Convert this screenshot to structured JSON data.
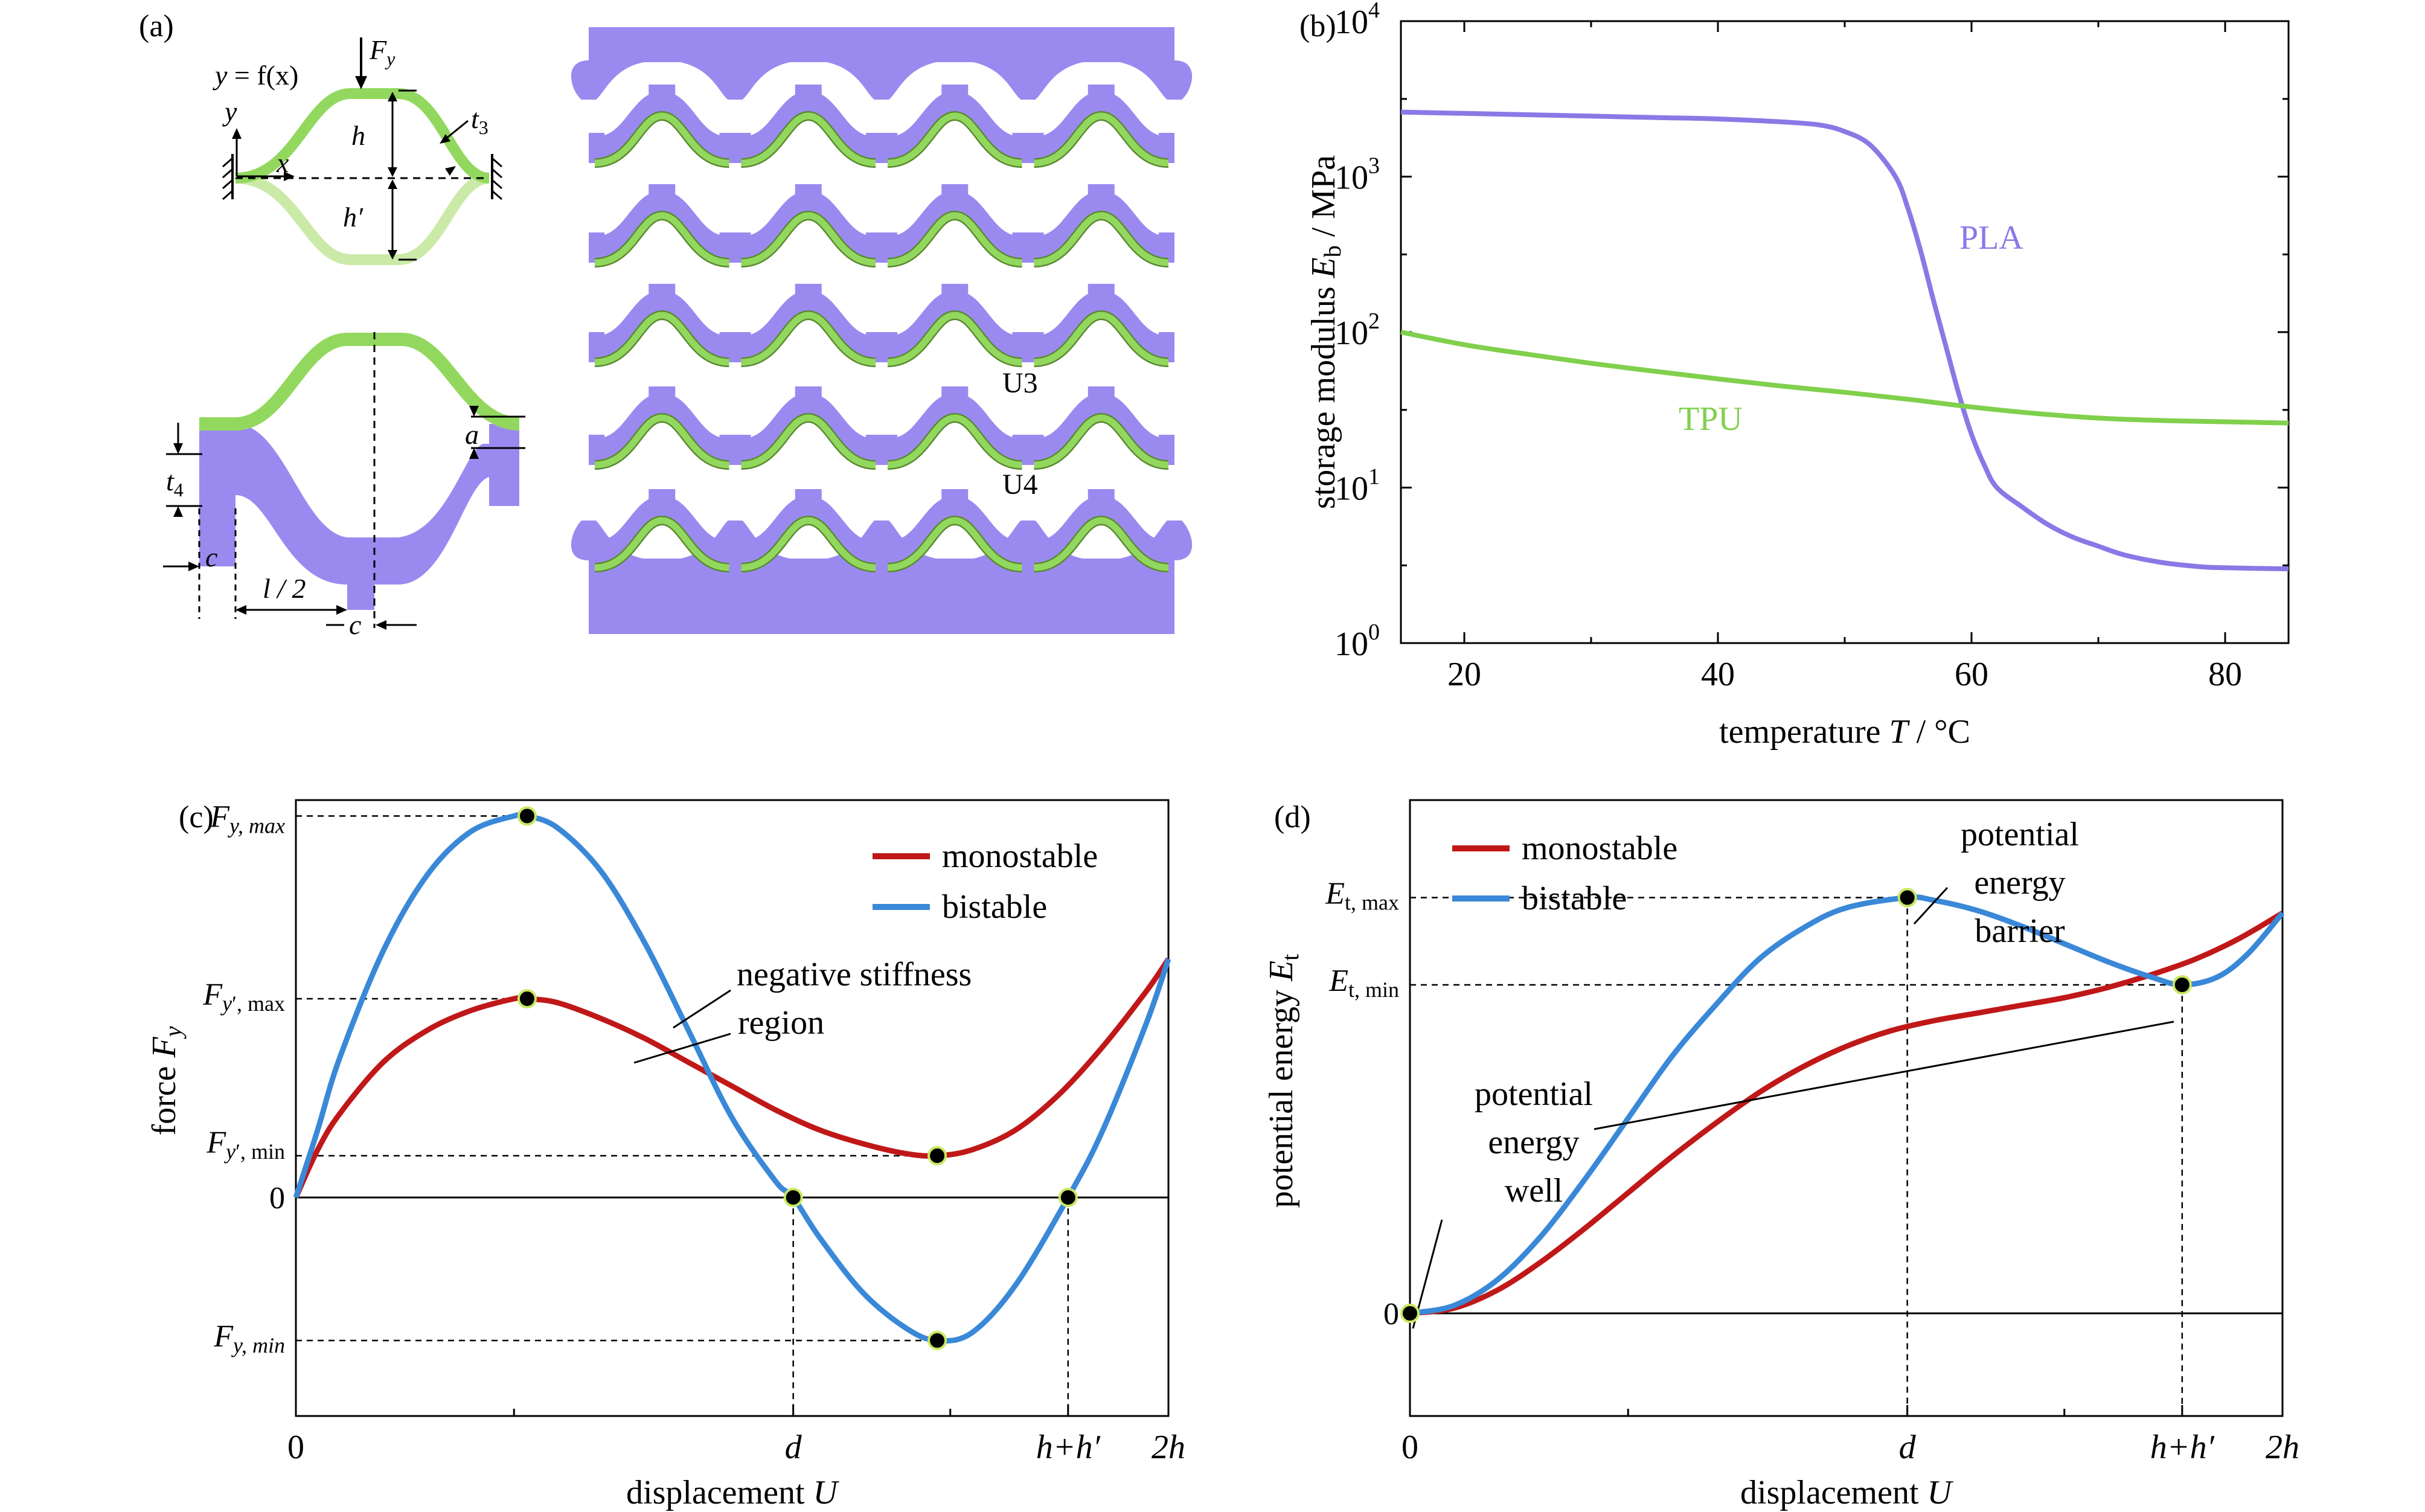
{
  "colors": {
    "pla": "#8a78e6",
    "tpu": "#80d04c",
    "unit_purple": "#9a8af0",
    "unit_green": "#92d85e",
    "monostable": "#c01818",
    "bistable": "#3a88d8",
    "marker_fill": "#000000",
    "marker_edge": "#c8e860"
  },
  "panel_a": {
    "label": "(a)",
    "eq_y": "y",
    "eq_rest": " = f(x)",
    "force_F": "F",
    "force_sub": "y",
    "h": "h",
    "h_prime": "h′",
    "t3_t": "t",
    "t3_sub": "3",
    "t4_t": "t",
    "t4_sub": "4",
    "x": "x",
    "y": "y",
    "a": "a",
    "c_left": "c",
    "c_bottom": "c",
    "half_l": "l / 2",
    "unit_u3": "U3",
    "unit_u4": "U4"
  },
  "chart_data": [
    {
      "panel": "(b)",
      "type": "line",
      "xlabel_prefix": "temperature ",
      "xlabel_var": "T",
      "xlabel_suffix": " / °C",
      "ylabel_prefix": "storage modulus ",
      "ylabel_var": "E",
      "ylabel_sub": "b",
      "ylabel_suffix": " / MPa",
      "xlim": [
        15,
        85
      ],
      "ylim_log10": [
        0,
        4
      ],
      "yscale": "log",
      "x_ticks": [
        "20",
        "40",
        "60",
        "80"
      ],
      "y_ticks_base": [
        "10",
        "10",
        "10",
        "10",
        "10"
      ],
      "y_ticks_exp": [
        "0",
        "1",
        "2",
        "3",
        "4"
      ],
      "series": [
        {
          "name": "PLA",
          "x": [
            15,
            20,
            25,
            30,
            35,
            40,
            45,
            48,
            50,
            52,
            54,
            55,
            56,
            57,
            58,
            59,
            60,
            61,
            62,
            64,
            66,
            68,
            70,
            72,
            75,
            78,
            80,
            85
          ],
          "y": [
            2600,
            2550,
            2500,
            2450,
            2400,
            2350,
            2250,
            2150,
            1950,
            1600,
            1000,
            620,
            330,
            160,
            80,
            40,
            22,
            14,
            10,
            7.5,
            5.8,
            4.8,
            4.2,
            3.7,
            3.3,
            3.1,
            3.05,
            3.0
          ]
        },
        {
          "name": "TPU",
          "x": [
            15,
            20,
            25,
            30,
            35,
            40,
            45,
            50,
            55,
            60,
            65,
            70,
            75,
            80,
            85
          ],
          "y": [
            100,
            83,
            72,
            63,
            56,
            50,
            45,
            41,
            37,
            33,
            30,
            28,
            27,
            26.5,
            26
          ]
        }
      ]
    },
    {
      "panel": "(c)",
      "type": "line",
      "xlabel_prefix": "displacement ",
      "xlabel_var": "U",
      "ylabel_prefix": "force ",
      "ylabel_var": "F",
      "ylabel_sub": "y",
      "xlim": [
        0,
        2
      ],
      "ylim": [
        -0.55,
        1.0
      ],
      "x_tick_labels": {
        "zero": "0",
        "d": "d",
        "hh": "h+h′",
        "two_h": "2h"
      },
      "y_tick_labels": {
        "zero": "0",
        "max_F": "F",
        "max_sub": "y, max",
        "maxp_F": "F",
        "maxp_prime": "y",
        "maxp_sub": "′, max",
        "minp_F": "F",
        "minp_prime": "y",
        "minp_sub": "′, min",
        "min_F": "F",
        "min_sub": "y, min"
      },
      "annotation_1": "negative stiffness",
      "annotation_2": "region",
      "key_points": {
        "bistable": [
          [
            0.53,
            0.96
          ],
          [
            1.14,
            0.0
          ],
          [
            1.47,
            -0.36
          ],
          [
            1.77,
            0.0
          ]
        ],
        "monostable": [
          [
            0.53,
            0.5
          ],
          [
            1.47,
            0.105
          ]
        ]
      },
      "series": [
        {
          "name": "monostable",
          "x": [
            0,
            0.05,
            0.1,
            0.2,
            0.3,
            0.4,
            0.5,
            0.53,
            0.6,
            0.7,
            0.8,
            0.9,
            1.0,
            1.1,
            1.2,
            1.3,
            1.4,
            1.47,
            1.55,
            1.65,
            1.75,
            1.85,
            1.95,
            2.0
          ],
          "y": [
            0,
            0.12,
            0.21,
            0.34,
            0.42,
            0.47,
            0.5,
            0.5,
            0.49,
            0.45,
            0.4,
            0.34,
            0.28,
            0.22,
            0.17,
            0.135,
            0.11,
            0.105,
            0.12,
            0.17,
            0.26,
            0.38,
            0.52,
            0.6
          ]
        },
        {
          "name": "bistable",
          "x": [
            0,
            0.05,
            0.1,
            0.2,
            0.3,
            0.4,
            0.5,
            0.53,
            0.6,
            0.7,
            0.8,
            0.9,
            1.0,
            1.1,
            1.14,
            1.2,
            1.3,
            1.4,
            1.47,
            1.55,
            1.65,
            1.77,
            1.85,
            1.95,
            2.0
          ],
          "y": [
            0,
            0.17,
            0.35,
            0.62,
            0.81,
            0.92,
            0.96,
            0.96,
            0.93,
            0.82,
            0.64,
            0.42,
            0.2,
            0.04,
            0.0,
            -0.1,
            -0.24,
            -0.33,
            -0.36,
            -0.34,
            -0.22,
            0.0,
            0.17,
            0.44,
            0.6
          ]
        }
      ]
    },
    {
      "panel": "(d)",
      "type": "line",
      "xlabel_prefix": "displacement ",
      "xlabel_var": "U",
      "ylabel_prefix": "potential energy ",
      "ylabel_var": "E",
      "ylabel_sub": "t",
      "xlim": [
        0,
        2
      ],
      "ylim": [
        -0.2,
        1.0
      ],
      "x_tick_labels": {
        "zero": "0",
        "d": "d",
        "hh": "h+h′",
        "two_h": "2h"
      },
      "y_tick_labels": {
        "zero": "0",
        "max_E": "E",
        "max_sub": "t, max",
        "min_E": "E",
        "min_sub": "t, min"
      },
      "annotation_barrier": [
        "potential",
        "energy",
        "barrier"
      ],
      "annotation_well": [
        "potential",
        "energy",
        "well"
      ],
      "key_points": {
        "bistable": [
          [
            0.0,
            0.0
          ],
          [
            1.14,
            0.81
          ],
          [
            1.77,
            0.64
          ]
        ]
      },
      "series": [
        {
          "name": "monostable",
          "x": [
            0,
            0.1,
            0.2,
            0.3,
            0.4,
            0.5,
            0.6,
            0.7,
            0.8,
            0.9,
            1.0,
            1.1,
            1.2,
            1.3,
            1.4,
            1.5,
            1.6,
            1.7,
            1.8,
            1.9,
            2.0
          ],
          "y": [
            0,
            0.01,
            0.045,
            0.1,
            0.165,
            0.235,
            0.305,
            0.37,
            0.43,
            0.48,
            0.52,
            0.55,
            0.57,
            0.585,
            0.6,
            0.615,
            0.635,
            0.66,
            0.69,
            0.73,
            0.78
          ]
        },
        {
          "name": "bistable",
          "x": [
            0,
            0.1,
            0.2,
            0.3,
            0.4,
            0.5,
            0.6,
            0.7,
            0.8,
            0.9,
            1.0,
            1.14,
            1.2,
            1.3,
            1.4,
            1.5,
            1.6,
            1.7,
            1.77,
            1.85,
            1.92,
            2.0
          ],
          "y": [
            0,
            0.015,
            0.065,
            0.15,
            0.26,
            0.38,
            0.5,
            0.6,
            0.69,
            0.75,
            0.79,
            0.81,
            0.805,
            0.785,
            0.755,
            0.72,
            0.685,
            0.655,
            0.64,
            0.655,
            0.7,
            0.78
          ]
        }
      ]
    }
  ]
}
